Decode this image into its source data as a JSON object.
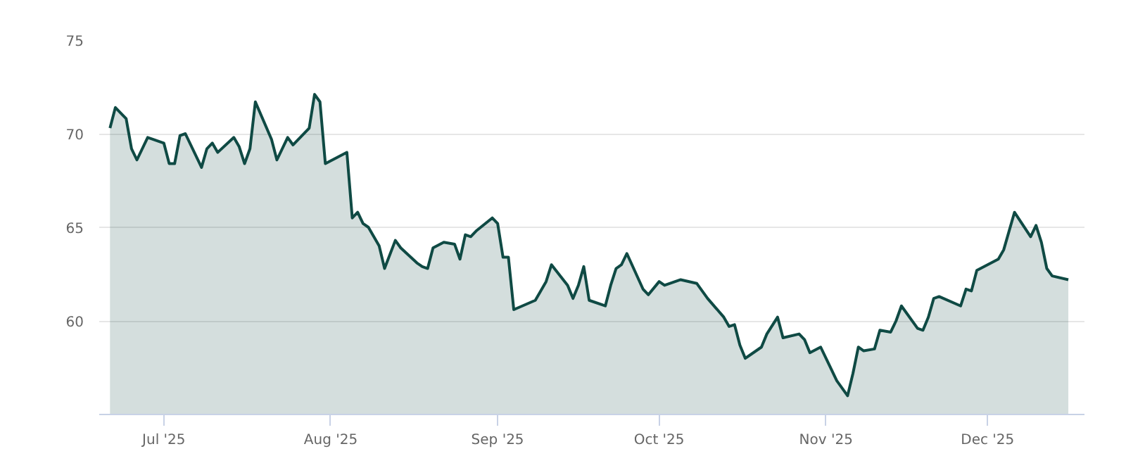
{
  "chart_data": {
    "type": "area",
    "grid": "y",
    "xlim": [
      "2025-06-19",
      "2025-12-19"
    ],
    "xticks": [
      {
        "value": "2025-07-01",
        "label": "Jul '25"
      },
      {
        "value": "2025-08-01",
        "label": "Aug '25"
      },
      {
        "value": "2025-09-01",
        "label": "Sep '25"
      },
      {
        "value": "2025-10-01",
        "label": "Oct '25"
      },
      {
        "value": "2025-11-01",
        "label": "Nov '25"
      },
      {
        "value": "2025-12-01",
        "label": "Dec '25"
      }
    ],
    "ylim": [
      55,
      75
    ],
    "yticks": [
      60,
      65,
      70,
      75
    ],
    "x": [
      "2025-06-21",
      "2025-06-22",
      "2025-06-24",
      "2025-06-25",
      "2025-06-26",
      "2025-06-28",
      "2025-07-01",
      "2025-07-02",
      "2025-07-03",
      "2025-07-04",
      "2025-07-05",
      "2025-07-08",
      "2025-07-09",
      "2025-07-10",
      "2025-07-11",
      "2025-07-14",
      "2025-07-15",
      "2025-07-16",
      "2025-07-17",
      "2025-07-18",
      "2025-07-21",
      "2025-07-22",
      "2025-07-24",
      "2025-07-25",
      "2025-07-28",
      "2025-07-29",
      "2025-07-30",
      "2025-07-31",
      "2025-08-04",
      "2025-08-05",
      "2025-08-06",
      "2025-08-07",
      "2025-08-08",
      "2025-08-10",
      "2025-08-11",
      "2025-08-13",
      "2025-08-14",
      "2025-08-17",
      "2025-08-18",
      "2025-08-19",
      "2025-08-20",
      "2025-08-22",
      "2025-08-24",
      "2025-08-25",
      "2025-08-26",
      "2025-08-27",
      "2025-08-28",
      "2025-08-31",
      "2025-09-01",
      "2025-09-02",
      "2025-09-03",
      "2025-09-04",
      "2025-09-08",
      "2025-09-10",
      "2025-09-11",
      "2025-09-14",
      "2025-09-15",
      "2025-09-16",
      "2025-09-17",
      "2025-09-18",
      "2025-09-21",
      "2025-09-22",
      "2025-09-23",
      "2025-09-24",
      "2025-09-25",
      "2025-09-28",
      "2025-09-29",
      "2025-10-01",
      "2025-10-02",
      "2025-10-05",
      "2025-10-08",
      "2025-10-10",
      "2025-10-13",
      "2025-10-14",
      "2025-10-15",
      "2025-10-16",
      "2025-10-17",
      "2025-10-20",
      "2025-10-21",
      "2025-10-23",
      "2025-10-24",
      "2025-10-27",
      "2025-10-28",
      "2025-10-29",
      "2025-10-31",
      "2025-11-03",
      "2025-11-05",
      "2025-11-06",
      "2025-11-07",
      "2025-11-08",
      "2025-11-10",
      "2025-11-11",
      "2025-11-13",
      "2025-11-14",
      "2025-11-15",
      "2025-11-18",
      "2025-11-19",
      "2025-11-20",
      "2025-11-21",
      "2025-11-22",
      "2025-11-26",
      "2025-11-27",
      "2025-11-28",
      "2025-11-29",
      "2025-12-01",
      "2025-12-03",
      "2025-12-04",
      "2025-12-06",
      "2025-12-09",
      "2025-12-10",
      "2025-12-11",
      "2025-12-12",
      "2025-12-13",
      "2025-12-16"
    ],
    "series": [
      {
        "color": "#0f4a44",
        "values": [
          70.3,
          71.4,
          70.8,
          69.2,
          68.6,
          69.8,
          69.5,
          68.4,
          68.4,
          69.9,
          70.0,
          68.2,
          69.2,
          69.5,
          69.0,
          69.8,
          69.3,
          68.4,
          69.2,
          71.7,
          69.7,
          68.6,
          69.8,
          69.4,
          70.3,
          72.1,
          71.7,
          68.4,
          69.0,
          65.5,
          65.8,
          65.2,
          65.0,
          64.0,
          62.8,
          64.3,
          63.9,
          63.1,
          62.9,
          62.8,
          63.9,
          64.2,
          64.1,
          63.3,
          64.6,
          64.5,
          64.8,
          65.5,
          65.2,
          63.4,
          63.4,
          60.6,
          61.1,
          62.1,
          63.0,
          61.9,
          61.2,
          61.9,
          62.9,
          61.1,
          60.8,
          61.9,
          62.8,
          63.0,
          63.6,
          61.7,
          61.4,
          62.1,
          61.9,
          62.2,
          62.0,
          61.2,
          60.2,
          59.7,
          59.8,
          58.7,
          58.0,
          58.6,
          59.3,
          60.2,
          59.1,
          59.3,
          59.0,
          58.3,
          58.6,
          56.8,
          56.0,
          57.2,
          58.6,
          58.4,
          58.5,
          59.5,
          59.4,
          60.0,
          60.8,
          59.6,
          59.5,
          60.2,
          61.2,
          61.3,
          60.8,
          61.7,
          61.6,
          62.7,
          63.0,
          63.3,
          63.8,
          65.8,
          64.5,
          65.1,
          64.2,
          62.8,
          62.4,
          62.2
        ]
      }
    ]
  }
}
